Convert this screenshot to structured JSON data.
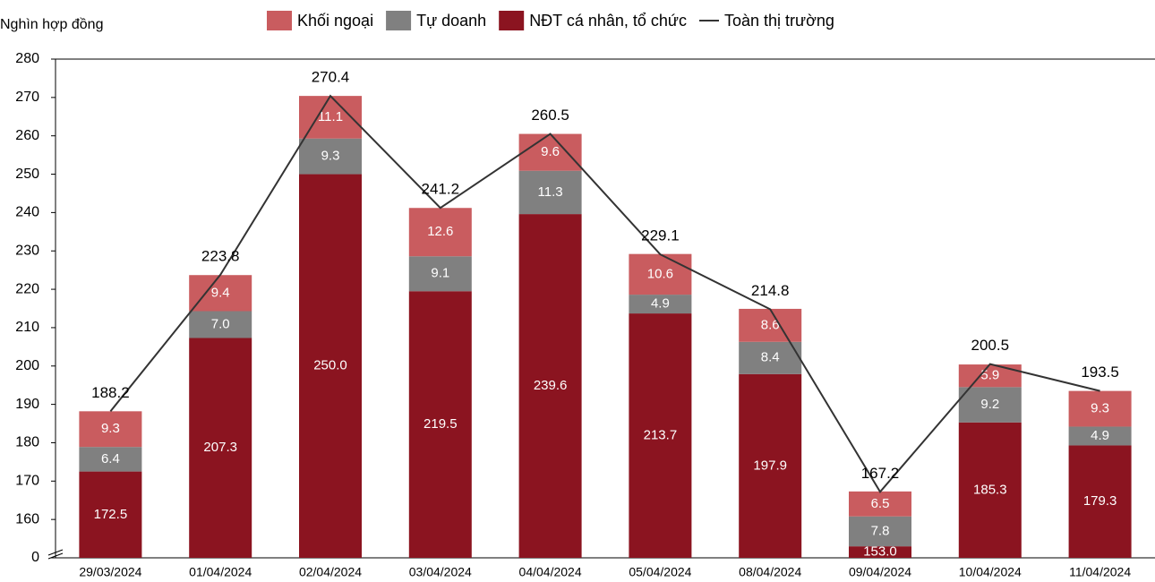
{
  "chart_data": {
    "type": "stacked_bar_line",
    "y_axis_label": "Nghìn hợp đồng",
    "categories": [
      "29/03/2024",
      "01/04/2024",
      "02/04/2024",
      "03/04/2024",
      "04/04/2024",
      "05/04/2024",
      "08/04/2024",
      "09/04/2024",
      "10/04/2024",
      "11/04/2024"
    ],
    "series": [
      {
        "name": "NĐT cá nhân, tổ chức",
        "color": "#8b1420",
        "values": [
          172.5,
          207.3,
          250.0,
          219.5,
          239.6,
          213.7,
          197.9,
          153.0,
          185.3,
          179.3
        ],
        "value_labels": [
          "172.5",
          "207.3",
          "250.0",
          "219.5",
          "239.6",
          "213.7",
          "197.9",
          "153.0",
          "185.3",
          "179.3"
        ]
      },
      {
        "name": "Tự doanh",
        "color": "#808080",
        "values": [
          6.4,
          7.0,
          9.3,
          9.1,
          11.3,
          4.9,
          8.4,
          7.8,
          9.2,
          4.9
        ],
        "value_labels": [
          "6.4",
          "7.0",
          "9.3",
          "9.1",
          "11.3",
          "4.9",
          "8.4",
          "7.8",
          "9.2",
          "4.9"
        ]
      },
      {
        "name": "Khối ngoại",
        "color": "#c95c5f",
        "values": [
          9.3,
          9.4,
          11.1,
          12.6,
          9.6,
          10.6,
          8.6,
          6.5,
          5.9,
          9.3
        ],
        "value_labels": [
          "9.3",
          "9.4",
          "11.1",
          "12.6",
          "9.6",
          "10.6",
          "8.6",
          "6.5",
          "5.9",
          "9.3"
        ]
      },
      {
        "name": "Toàn thị trường",
        "type": "line",
        "color": "#333333",
        "values": [
          188.2,
          223.8,
          270.4,
          241.2,
          260.5,
          229.1,
          214.8,
          167.2,
          200.5,
          193.5
        ]
      }
    ],
    "ylim": [
      0,
      280
    ],
    "y_break": [
      0,
      150
    ],
    "yticks": [
      0,
      160,
      170,
      180,
      190,
      200,
      210,
      220,
      230,
      240,
      250,
      260,
      270,
      280
    ],
    "grid": false
  }
}
